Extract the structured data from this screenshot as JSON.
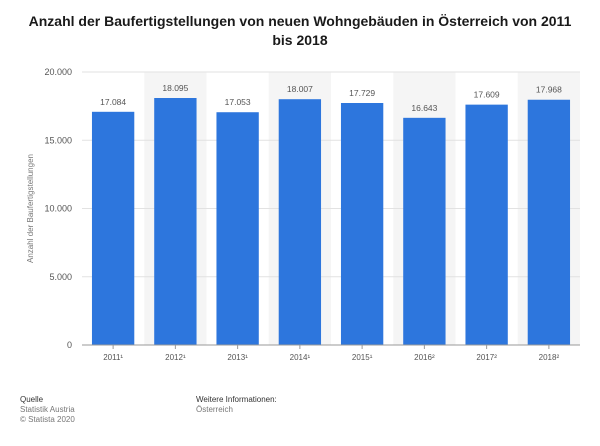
{
  "chart_data": {
    "type": "bar",
    "title": "Anzahl der Baufertigstellungen von neuen Wohngebäuden in Österreich von 2011 bis 2018",
    "xlabel": "",
    "ylabel": "Anzahl der Baufertigstellungen",
    "categories": [
      "2011¹",
      "2012¹",
      "2013¹",
      "2014¹",
      "2015¹",
      "2016²",
      "2017²",
      "2018²"
    ],
    "values": [
      17084,
      18095,
      17053,
      18007,
      17729,
      16643,
      17609,
      17968
    ],
    "value_labels": [
      "17.084",
      "18.095",
      "17.053",
      "18.007",
      "17.729",
      "16.643",
      "17.609",
      "17.968"
    ],
    "ylim": [
      0,
      20000
    ],
    "yticks": [
      0,
      5000,
      10000,
      15000,
      20000
    ],
    "ytick_labels": [
      "0",
      "5.000",
      "10.000",
      "15.000",
      "20.000"
    ],
    "bar_color": "#2d76dd",
    "alt_band_color": "#f5f5f5",
    "grid": true,
    "legend": false
  },
  "footer": {
    "source_heading": "Quelle",
    "source_lines": [
      "Statistik Austria",
      "© Statista 2020"
    ],
    "info_heading": "Weitere Informationen:",
    "info_lines": [
      "Österreich"
    ]
  }
}
